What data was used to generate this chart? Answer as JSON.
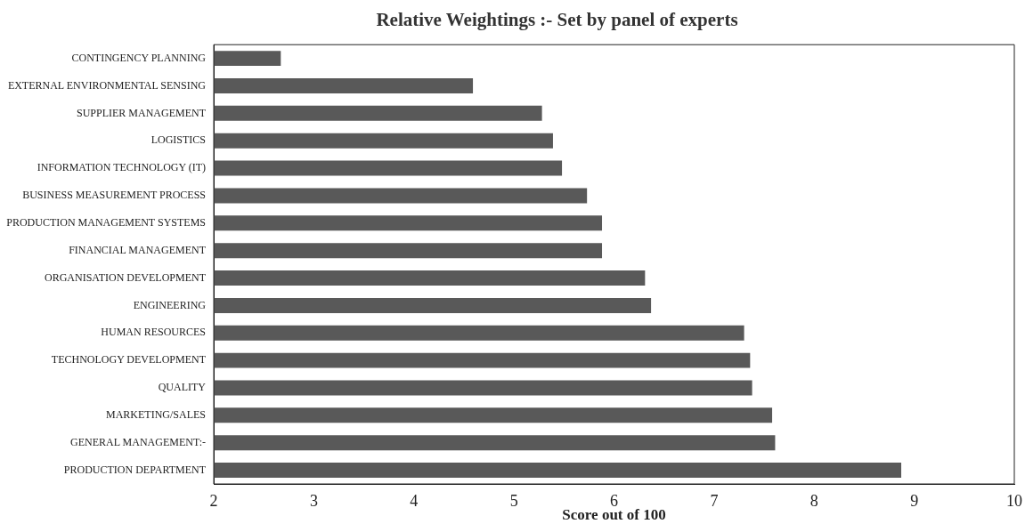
{
  "chart_data": {
    "type": "bar",
    "orientation": "horizontal",
    "title": "Relative Weightings :- Set by panel of experts",
    "xlabel": "Score out of 100",
    "categories": [
      "CONTINGENCY PLANNING",
      "EXTERNAL ENVIRONMENTAL SENSING",
      "SUPPLIER MANAGEMENT",
      "LOGISTICS",
      "INFORMATION TECHNOLOGY (IT)",
      "BUSINESS MEASUREMENT PROCESS",
      "PRODUCTION MANAGEMENT SYSTEMS",
      "FINANCIAL MANAGEMENT",
      "ORGANISATION DEVELOPMENT",
      "ENGINEERING",
      "HUMAN RESOURCES",
      "TECHNOLOGY DEVELOPMENT",
      "QUALITY",
      "MARKETING/SALES",
      "GENERAL MANAGEMENT:-",
      "PRODUCTION DEPARTMENT"
    ],
    "values": [
      2.67,
      4.59,
      5.28,
      5.39,
      5.48,
      5.73,
      5.88,
      5.88,
      6.31,
      6.37,
      7.3,
      7.36,
      7.38,
      7.58,
      7.61,
      8.87
    ],
    "color": "#595959",
    "xlim": [
      2,
      10
    ],
    "xticks": [
      2,
      3,
      4,
      5,
      6,
      7,
      8,
      9,
      10
    ],
    "grid": false,
    "legend": false
  }
}
